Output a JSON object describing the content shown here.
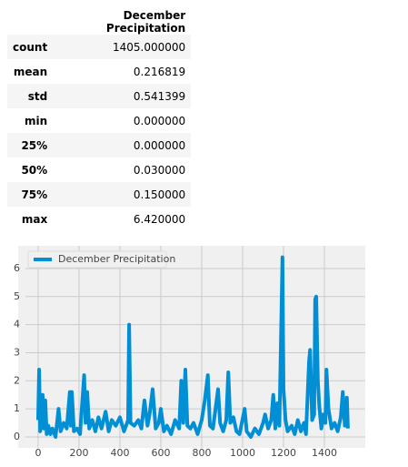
{
  "table": {
    "columns": [
      "December Precipitation"
    ],
    "rows": [
      [
        "count",
        "1405.000000"
      ],
      [
        "mean",
        "0.216819"
      ],
      [
        "std",
        "0.541399"
      ],
      [
        "min",
        "0.000000"
      ],
      [
        "25%",
        "0.000000"
      ],
      [
        "50%",
        "0.030000"
      ],
      [
        "75%",
        "0.150000"
      ],
      [
        "max",
        "6.420000"
      ]
    ]
  },
  "chart_data": {
    "type": "line",
    "x": [
      0,
      5,
      10,
      15,
      22,
      28,
      35,
      42,
      50,
      60,
      70,
      85,
      100,
      110,
      125,
      140,
      155,
      160,
      165,
      175,
      190,
      205,
      225,
      232,
      240,
      250,
      265,
      280,
      295,
      310,
      330,
      345,
      360,
      380,
      400,
      420,
      440,
      445,
      452,
      470,
      490,
      505,
      520,
      535,
      545,
      560,
      575,
      590,
      600,
      615,
      630,
      650,
      670,
      690,
      700,
      710,
      720,
      730,
      745,
      760,
      780,
      800,
      815,
      830,
      840,
      855,
      880,
      890,
      905,
      920,
      930,
      940,
      955,
      970,
      985,
      1010,
      1020,
      1040,
      1060,
      1080,
      1100,
      1110,
      1125,
      1140,
      1150,
      1160,
      1170,
      1180,
      1195,
      1200,
      1210,
      1220,
      1240,
      1255,
      1270,
      1285,
      1300,
      1310,
      1325,
      1330,
      1340,
      1350,
      1355,
      1360,
      1368,
      1375,
      1385,
      1395,
      1405,
      1410,
      1420,
      1435,
      1450,
      1465,
      1480,
      1490,
      1500,
      1510,
      1515
    ],
    "series": [
      {
        "name": "December Precipitation",
        "color": "#008fd5",
        "values": [
          0.6,
          2.4,
          0.2,
          0.5,
          1.5,
          0.3,
          1.3,
          0.1,
          0.4,
          0.1,
          0.3,
          0.0,
          1.0,
          0.2,
          0.5,
          0.3,
          1.6,
          0.4,
          1.6,
          0.2,
          0.3,
          0.1,
          2.2,
          0.5,
          1.6,
          0.3,
          0.6,
          0.2,
          0.7,
          0.3,
          0.9,
          0.2,
          0.6,
          0.4,
          0.7,
          0.2,
          0.6,
          4.0,
          0.5,
          0.4,
          0.6,
          0.3,
          1.3,
          0.4,
          0.8,
          1.7,
          0.3,
          0.5,
          1.0,
          0.2,
          0.4,
          0.1,
          0.6,
          0.3,
          2.0,
          0.5,
          2.4,
          0.4,
          0.3,
          0.5,
          0.1,
          0.6,
          1.3,
          2.2,
          0.4,
          0.3,
          1.7,
          0.5,
          0.2,
          0.6,
          2.3,
          0.5,
          0.7,
          0.2,
          0.1,
          1.0,
          0.2,
          0.0,
          0.3,
          0.1,
          0.5,
          0.8,
          0.3,
          0.6,
          1.5,
          0.3,
          1.2,
          0.4,
          6.4,
          1.7,
          0.6,
          0.2,
          0.4,
          0.1,
          0.6,
          0.2,
          0.5,
          0.1,
          2.7,
          3.1,
          0.6,
          0.8,
          4.9,
          5.0,
          2.0,
          1.1,
          0.3,
          0.8,
          0.5,
          2.4,
          1.0,
          0.3,
          0.5,
          0.2,
          0.7,
          1.6,
          0.4,
          1.4,
          0.3
        ]
      }
    ],
    "xlim": [
      -62,
      1600
    ],
    "xticks": [
      0,
      200,
      400,
      600,
      800,
      1000,
      1200,
      1400
    ],
    "ylim": [
      -0.39,
      6.81
    ],
    "yticks": [
      0,
      1,
      2,
      3,
      4,
      5,
      6
    ],
    "grid": true,
    "legend": "upper left"
  }
}
